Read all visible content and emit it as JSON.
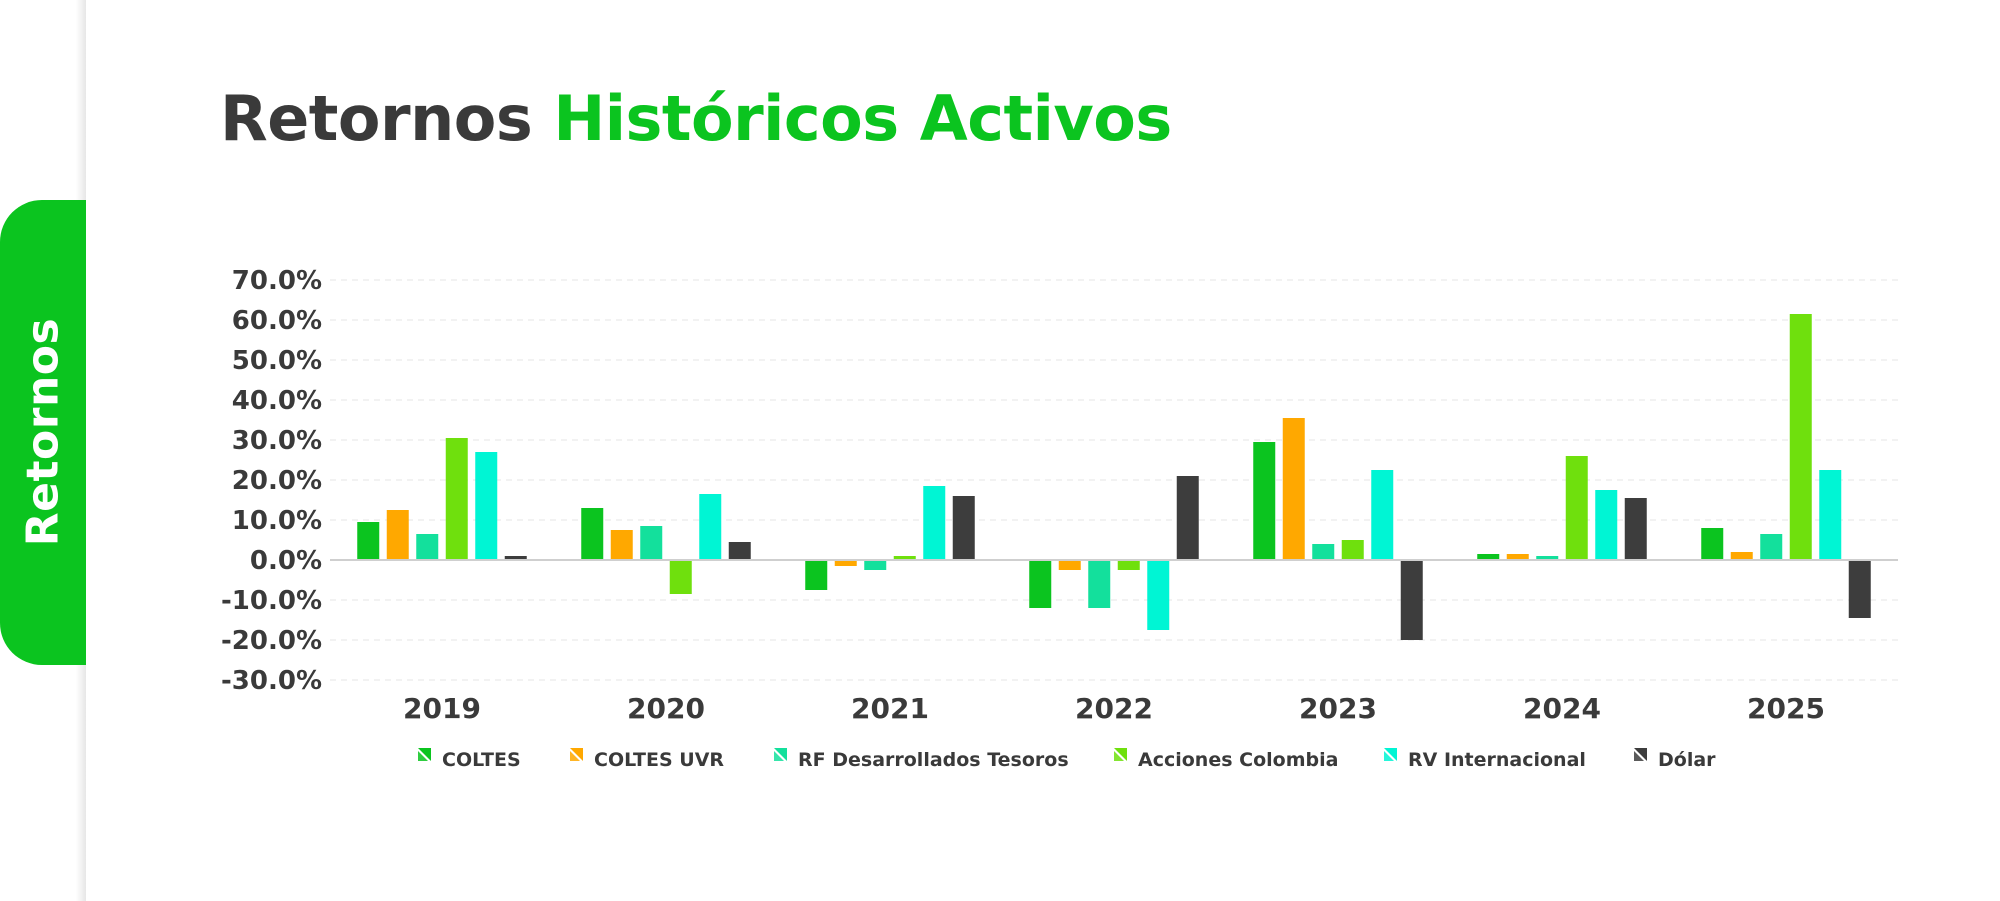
{
  "side_label": "Retornos",
  "title": {
    "part1": "Retornos ",
    "part2": "Históricos Activos"
  },
  "colors": {
    "accent": "#0bc41f",
    "title_dark": "#3a3a3a",
    "axis_text": "#3a3a3a"
  },
  "chart_data": {
    "type": "bar",
    "title": "Retornos Históricos Activos",
    "xlabel": "",
    "ylabel": "",
    "ylim": [
      -30,
      70
    ],
    "yticks": [
      70,
      60,
      50,
      40,
      30,
      20,
      10,
      0,
      -10,
      -20,
      -30
    ],
    "ytick_labels": [
      "70.0%",
      "60.0%",
      "50.0%",
      "40.0%",
      "30.0%",
      "20.0%",
      "10.0%",
      "0.0%",
      "-10.0%",
      "-20.0%",
      "-30.0%"
    ],
    "grid": true,
    "legend_position": "bottom",
    "categories": [
      "2019",
      "2020",
      "2021",
      "2022",
      "2023",
      "2024",
      "2025"
    ],
    "series": [
      {
        "name": "COLTES",
        "color": "#0bc41f",
        "values": [
          9.5,
          13.0,
          -7.5,
          -12.0,
          29.5,
          1.5,
          8.0
        ]
      },
      {
        "name": "COLTES UVR",
        "color": "#ffa800",
        "values": [
          12.5,
          7.5,
          -1.5,
          -2.5,
          35.5,
          1.5,
          2.0
        ]
      },
      {
        "name": "RF Desarrollados Tesoros",
        "color": "#13e09c",
        "values": [
          6.5,
          8.5,
          -2.5,
          -12.0,
          4.0,
          1.0,
          6.5
        ]
      },
      {
        "name": "Acciones Colombia",
        "color": "#6fe00d",
        "values": [
          30.5,
          -8.5,
          1.0,
          -2.5,
          5.0,
          26.0,
          61.5
        ]
      },
      {
        "name": "RV Internacional",
        "color": "#00f5d4",
        "values": [
          27.0,
          16.5,
          18.5,
          -17.5,
          22.5,
          17.5,
          22.5
        ]
      },
      {
        "name": "Dólar",
        "color": "#3d3d3d",
        "values": [
          1.0,
          4.5,
          16.0,
          21.0,
          -20.0,
          15.5,
          -14.5
        ]
      }
    ]
  }
}
